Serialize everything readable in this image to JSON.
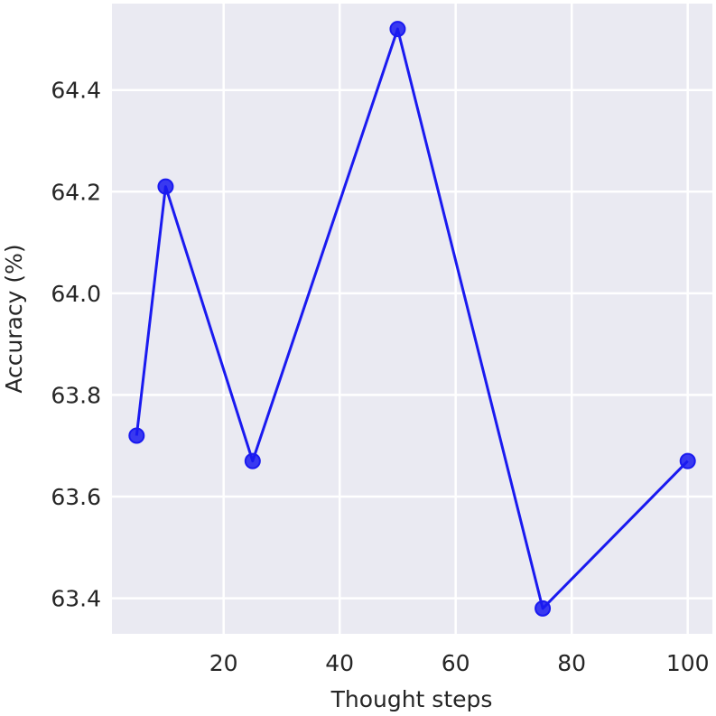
{
  "chart_data": {
    "type": "line",
    "title": "",
    "xlabel": "Thought steps",
    "ylabel": "Accuracy (%)",
    "xlim": [
      0.75,
      104.25
    ],
    "ylim": [
      63.33,
      64.57
    ],
    "xticks": [
      20,
      40,
      60,
      80,
      100
    ],
    "yticks": [
      63.4,
      63.6,
      63.8,
      64.0,
      64.2,
      64.4
    ],
    "xtick_labels": [
      "20",
      "40",
      "60",
      "80",
      "100"
    ],
    "ytick_labels": [
      "63.4",
      "63.6",
      "63.8",
      "64.0",
      "64.2",
      "64.4"
    ],
    "grid": true,
    "background_color": "#eaeaf2",
    "grid_color": "#ffffff",
    "series": [
      {
        "color": "#1a1af0",
        "marker": "circle",
        "x": [
          5,
          10,
          25,
          50,
          75,
          100
        ],
        "y": [
          63.72,
          64.21,
          63.67,
          64.52,
          63.38,
          63.67
        ]
      }
    ]
  }
}
